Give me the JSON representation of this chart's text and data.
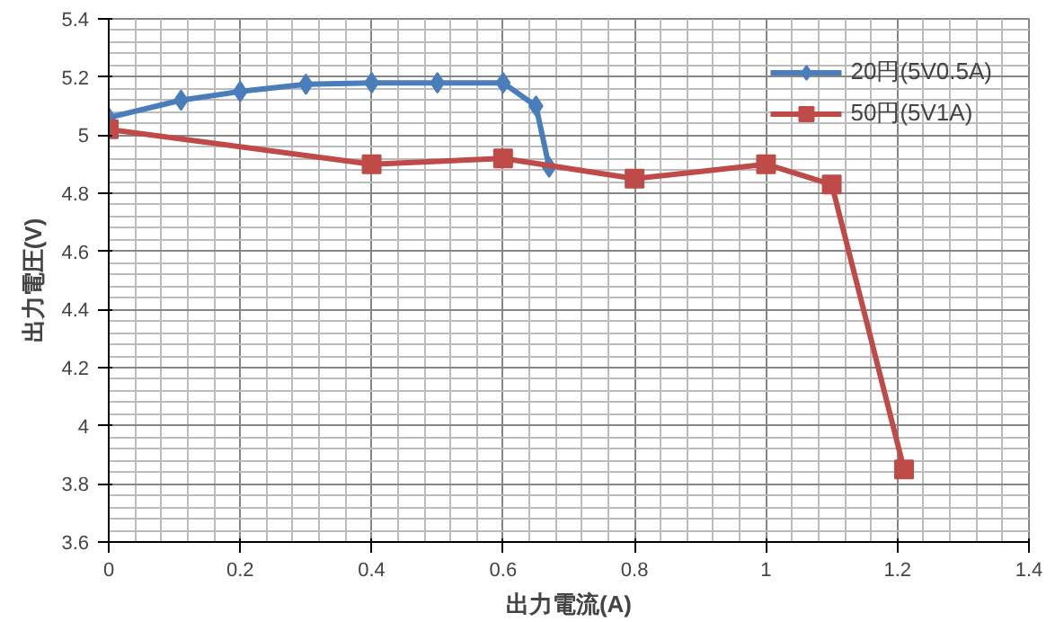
{
  "chart_data": {
    "type": "line",
    "xlabel": "出力電流(A)",
    "ylabel": "出力電圧(V)",
    "xlim": [
      0,
      1.4
    ],
    "xticks": [
      0,
      0.2,
      0.4,
      0.6,
      0.8,
      1,
      1.2,
      1.4
    ],
    "ylim": [
      3.6,
      5.4
    ],
    "yticks": [
      3.6,
      3.8,
      4,
      4.2,
      4.4,
      4.6,
      4.8,
      5,
      5.2,
      5.4
    ],
    "grid": true,
    "legend": "top right",
    "series": [
      {
        "name": "20円(5V0.5A)",
        "color": "#4a7ebb",
        "marker": "diamond",
        "x": [
          0,
          0.11,
          0.2,
          0.3,
          0.4,
          0.5,
          0.6,
          0.65,
          0.67
        ],
        "values": [
          5.06,
          5.12,
          5.15,
          5.175,
          5.18,
          5.18,
          5.18,
          5.1,
          4.89
        ]
      },
      {
        "name": "50円(5V1A)",
        "color": "#be4b48",
        "marker": "square",
        "x": [
          0,
          0.4,
          0.6,
          0.8,
          1.0,
          1.1,
          1.21
        ],
        "values": [
          5.02,
          4.9,
          4.92,
          4.85,
          4.9,
          4.83,
          3.85
        ]
      }
    ]
  }
}
